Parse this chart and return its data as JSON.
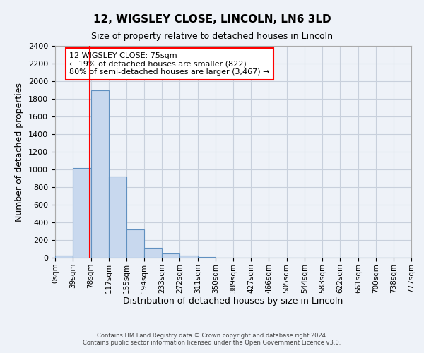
{
  "title": "12, WIGSLEY CLOSE, LINCOLN, LN6 3LD",
  "subtitle": "Size of property relative to detached houses in Lincoln",
  "xlabel": "Distribution of detached houses by size in Lincoln",
  "ylabel": "Number of detached properties",
  "bin_edges": [
    0,
    39,
    78,
    117,
    155,
    194,
    233,
    272,
    311,
    350,
    389,
    427,
    466,
    505,
    544,
    583,
    622,
    661,
    700,
    738,
    777
  ],
  "bin_labels": [
    "0sqm",
    "39sqm",
    "78sqm",
    "117sqm",
    "155sqm",
    "194sqm",
    "233sqm",
    "272sqm",
    "311sqm",
    "350sqm",
    "389sqm",
    "427sqm",
    "466sqm",
    "505sqm",
    "544sqm",
    "583sqm",
    "622sqm",
    "661sqm",
    "700sqm",
    "738sqm",
    "777sqm"
  ],
  "bar_heights": [
    25,
    1020,
    1900,
    920,
    320,
    110,
    50,
    25,
    10,
    0,
    0,
    0,
    0,
    0,
    0,
    0,
    0,
    0,
    0,
    0
  ],
  "bar_color": "#c8d8ee",
  "bar_edge_color": "#6090c0",
  "property_line_x": 75,
  "property_line_color": "red",
  "ylim": [
    0,
    2400
  ],
  "yticks": [
    0,
    200,
    400,
    600,
    800,
    1000,
    1200,
    1400,
    1600,
    1800,
    2000,
    2200,
    2400
  ],
  "annotation_text": "12 WIGSLEY CLOSE: 75sqm\n← 19% of detached houses are smaller (822)\n80% of semi-detached houses are larger (3,467) →",
  "annotation_box_color": "white",
  "annotation_box_edge_color": "red",
  "footer_line1": "Contains HM Land Registry data © Crown copyright and database right 2024.",
  "footer_line2": "Contains public sector information licensed under the Open Government Licence v3.0.",
  "background_color": "#eef2f8",
  "grid_color": "#c8d0dc"
}
